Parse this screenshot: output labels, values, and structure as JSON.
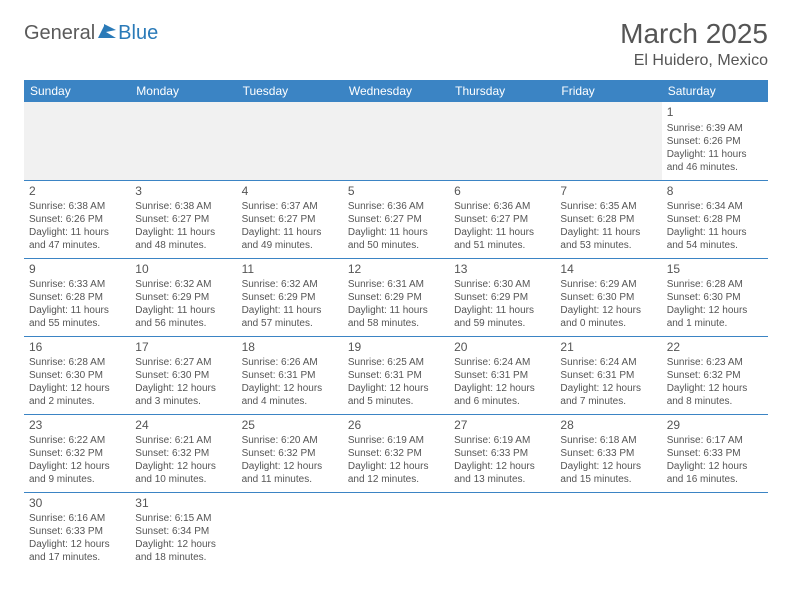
{
  "logo": {
    "part1": "General",
    "part2": "Blue"
  },
  "title": "March 2025",
  "location": "El Huidero, Mexico",
  "colors": {
    "header_bg": "#3b84c4",
    "border": "#3b84c4",
    "text": "#555555"
  },
  "weekdays": [
    "Sunday",
    "Monday",
    "Tuesday",
    "Wednesday",
    "Thursday",
    "Friday",
    "Saturday"
  ],
  "weeks": [
    [
      null,
      null,
      null,
      null,
      null,
      null,
      {
        "n": "1",
        "sr": "Sunrise: 6:39 AM",
        "ss": "Sunset: 6:26 PM",
        "d1": "Daylight: 11 hours",
        "d2": "and 46 minutes."
      }
    ],
    [
      {
        "n": "2",
        "sr": "Sunrise: 6:38 AM",
        "ss": "Sunset: 6:26 PM",
        "d1": "Daylight: 11 hours",
        "d2": "and 47 minutes."
      },
      {
        "n": "3",
        "sr": "Sunrise: 6:38 AM",
        "ss": "Sunset: 6:27 PM",
        "d1": "Daylight: 11 hours",
        "d2": "and 48 minutes."
      },
      {
        "n": "4",
        "sr": "Sunrise: 6:37 AM",
        "ss": "Sunset: 6:27 PM",
        "d1": "Daylight: 11 hours",
        "d2": "and 49 minutes."
      },
      {
        "n": "5",
        "sr": "Sunrise: 6:36 AM",
        "ss": "Sunset: 6:27 PM",
        "d1": "Daylight: 11 hours",
        "d2": "and 50 minutes."
      },
      {
        "n": "6",
        "sr": "Sunrise: 6:36 AM",
        "ss": "Sunset: 6:27 PM",
        "d1": "Daylight: 11 hours",
        "d2": "and 51 minutes."
      },
      {
        "n": "7",
        "sr": "Sunrise: 6:35 AM",
        "ss": "Sunset: 6:28 PM",
        "d1": "Daylight: 11 hours",
        "d2": "and 53 minutes."
      },
      {
        "n": "8",
        "sr": "Sunrise: 6:34 AM",
        "ss": "Sunset: 6:28 PM",
        "d1": "Daylight: 11 hours",
        "d2": "and 54 minutes."
      }
    ],
    [
      {
        "n": "9",
        "sr": "Sunrise: 6:33 AM",
        "ss": "Sunset: 6:28 PM",
        "d1": "Daylight: 11 hours",
        "d2": "and 55 minutes."
      },
      {
        "n": "10",
        "sr": "Sunrise: 6:32 AM",
        "ss": "Sunset: 6:29 PM",
        "d1": "Daylight: 11 hours",
        "d2": "and 56 minutes."
      },
      {
        "n": "11",
        "sr": "Sunrise: 6:32 AM",
        "ss": "Sunset: 6:29 PM",
        "d1": "Daylight: 11 hours",
        "d2": "and 57 minutes."
      },
      {
        "n": "12",
        "sr": "Sunrise: 6:31 AM",
        "ss": "Sunset: 6:29 PM",
        "d1": "Daylight: 11 hours",
        "d2": "and 58 minutes."
      },
      {
        "n": "13",
        "sr": "Sunrise: 6:30 AM",
        "ss": "Sunset: 6:29 PM",
        "d1": "Daylight: 11 hours",
        "d2": "and 59 minutes."
      },
      {
        "n": "14",
        "sr": "Sunrise: 6:29 AM",
        "ss": "Sunset: 6:30 PM",
        "d1": "Daylight: 12 hours",
        "d2": "and 0 minutes."
      },
      {
        "n": "15",
        "sr": "Sunrise: 6:28 AM",
        "ss": "Sunset: 6:30 PM",
        "d1": "Daylight: 12 hours",
        "d2": "and 1 minute."
      }
    ],
    [
      {
        "n": "16",
        "sr": "Sunrise: 6:28 AM",
        "ss": "Sunset: 6:30 PM",
        "d1": "Daylight: 12 hours",
        "d2": "and 2 minutes."
      },
      {
        "n": "17",
        "sr": "Sunrise: 6:27 AM",
        "ss": "Sunset: 6:30 PM",
        "d1": "Daylight: 12 hours",
        "d2": "and 3 minutes."
      },
      {
        "n": "18",
        "sr": "Sunrise: 6:26 AM",
        "ss": "Sunset: 6:31 PM",
        "d1": "Daylight: 12 hours",
        "d2": "and 4 minutes."
      },
      {
        "n": "19",
        "sr": "Sunrise: 6:25 AM",
        "ss": "Sunset: 6:31 PM",
        "d1": "Daylight: 12 hours",
        "d2": "and 5 minutes."
      },
      {
        "n": "20",
        "sr": "Sunrise: 6:24 AM",
        "ss": "Sunset: 6:31 PM",
        "d1": "Daylight: 12 hours",
        "d2": "and 6 minutes."
      },
      {
        "n": "21",
        "sr": "Sunrise: 6:24 AM",
        "ss": "Sunset: 6:31 PM",
        "d1": "Daylight: 12 hours",
        "d2": "and 7 minutes."
      },
      {
        "n": "22",
        "sr": "Sunrise: 6:23 AM",
        "ss": "Sunset: 6:32 PM",
        "d1": "Daylight: 12 hours",
        "d2": "and 8 minutes."
      }
    ],
    [
      {
        "n": "23",
        "sr": "Sunrise: 6:22 AM",
        "ss": "Sunset: 6:32 PM",
        "d1": "Daylight: 12 hours",
        "d2": "and 9 minutes."
      },
      {
        "n": "24",
        "sr": "Sunrise: 6:21 AM",
        "ss": "Sunset: 6:32 PM",
        "d1": "Daylight: 12 hours",
        "d2": "and 10 minutes."
      },
      {
        "n": "25",
        "sr": "Sunrise: 6:20 AM",
        "ss": "Sunset: 6:32 PM",
        "d1": "Daylight: 12 hours",
        "d2": "and 11 minutes."
      },
      {
        "n": "26",
        "sr": "Sunrise: 6:19 AM",
        "ss": "Sunset: 6:32 PM",
        "d1": "Daylight: 12 hours",
        "d2": "and 12 minutes."
      },
      {
        "n": "27",
        "sr": "Sunrise: 6:19 AM",
        "ss": "Sunset: 6:33 PM",
        "d1": "Daylight: 12 hours",
        "d2": "and 13 minutes."
      },
      {
        "n": "28",
        "sr": "Sunrise: 6:18 AM",
        "ss": "Sunset: 6:33 PM",
        "d1": "Daylight: 12 hours",
        "d2": "and 15 minutes."
      },
      {
        "n": "29",
        "sr": "Sunrise: 6:17 AM",
        "ss": "Sunset: 6:33 PM",
        "d1": "Daylight: 12 hours",
        "d2": "and 16 minutes."
      }
    ],
    [
      {
        "n": "30",
        "sr": "Sunrise: 6:16 AM",
        "ss": "Sunset: 6:33 PM",
        "d1": "Daylight: 12 hours",
        "d2": "and 17 minutes."
      },
      {
        "n": "31",
        "sr": "Sunrise: 6:15 AM",
        "ss": "Sunset: 6:34 PM",
        "d1": "Daylight: 12 hours",
        "d2": "and 18 minutes."
      },
      null,
      null,
      null,
      null,
      null
    ]
  ]
}
